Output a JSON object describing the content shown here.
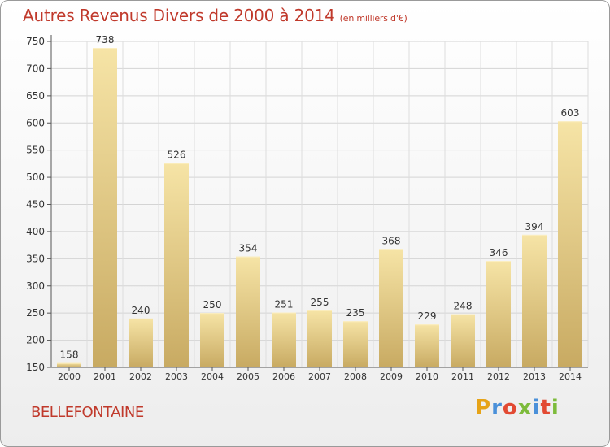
{
  "header": {
    "title": "Autres Revenus Divers de 2000 à 2014",
    "subtitle": "(en milliers d'€)"
  },
  "footer": {
    "place": "BELLEFONTAINE",
    "logo": "Proxiti"
  },
  "colors": {
    "title": "#c0392b",
    "bar_light": "#f6e4a6",
    "bar_dark": "#c8aa62",
    "logo_letters": [
      "#e6a317",
      "#4a90d9",
      "#e24a33",
      "#7dbb3b",
      "#4a90d9",
      "#e24a33",
      "#7dbb3b"
    ]
  },
  "chart_data": {
    "type": "bar",
    "categories": [
      "2000",
      "2001",
      "2002",
      "2003",
      "2004",
      "2005",
      "2006",
      "2007",
      "2008",
      "2009",
      "2010",
      "2011",
      "2012",
      "2013",
      "2014"
    ],
    "values": [
      158,
      738,
      240,
      526,
      250,
      354,
      251,
      255,
      235,
      368,
      229,
      248,
      346,
      394,
      603
    ],
    "value_labels": [
      "158",
      "738",
      "240",
      "526",
      "250",
      "354",
      "251",
      "255",
      "235",
      "368",
      "229",
      "248",
      "346",
      "394",
      "603"
    ],
    "ylim": [
      150,
      750
    ],
    "yticks": [
      "150",
      "200",
      "250",
      "300",
      "350",
      "400",
      "450",
      "500",
      "550",
      "600",
      "650",
      "700",
      "750"
    ],
    "grid": true
  }
}
